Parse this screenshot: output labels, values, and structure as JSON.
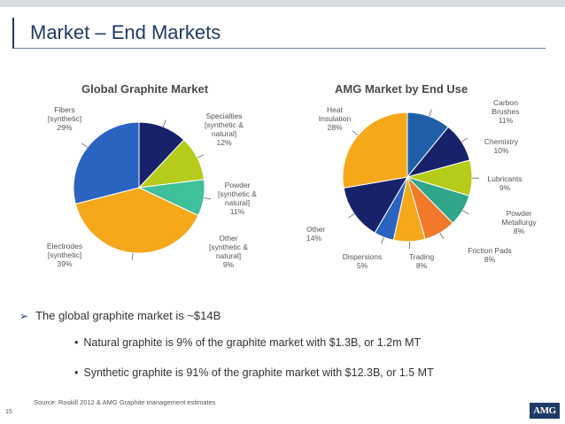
{
  "page": {
    "title": "Market – End Markets",
    "page_number": "15",
    "logo_text": "AMG"
  },
  "chart_data": [
    {
      "type": "pie",
      "title": "Global Graphite Market",
      "slices": [
        {
          "label": "Specialties [synthetic & natural]",
          "label_lines": [
            "Specialties",
            "[synthetic &",
            "natural]",
            "12%"
          ],
          "value": 12,
          "color": "#17226b"
        },
        {
          "label": "Powder [synthetic & natural]",
          "label_lines": [
            "Powder",
            "[synthetic &",
            "natural]",
            "11%"
          ],
          "value": 11,
          "color": "#b5cc1a"
        },
        {
          "label": "Other [synthetic & natural]",
          "label_lines": [
            "Other",
            "[synthetic &",
            "natural]",
            "9%"
          ],
          "value": 9,
          "color": "#3fbf9a"
        },
        {
          "label": "Electrodes [synthetic]",
          "label_lines": [
            "Electrodes",
            "[synthetic]",
            "39%"
          ],
          "value": 39,
          "color": "#f5a81a"
        },
        {
          "label": "Fibers [synthetic]",
          "label_lines": [
            "Fibers",
            "[synthetic]",
            "29%"
          ],
          "value": 29,
          "color": "#2a63c0"
        }
      ]
    },
    {
      "type": "pie",
      "title": "AMG Market by End Use",
      "slices": [
        {
          "label": "Carbon Brushes",
          "label_lines": [
            "Carbon",
            "Brushes",
            "11%"
          ],
          "value": 11,
          "color": "#1f5fa8"
        },
        {
          "label": "Chemistry",
          "label_lines": [
            "Chemistry",
            "10%"
          ],
          "value": 10,
          "color": "#17226b"
        },
        {
          "label": "Lubricants",
          "label_lines": [
            "Lubricants",
            "9%"
          ],
          "value": 9,
          "color": "#b5cc1a"
        },
        {
          "label": "Powder Metallurgy",
          "label_lines": [
            "Powder",
            "Metallurgy",
            "8%"
          ],
          "value": 8,
          "color": "#2fa58a"
        },
        {
          "label": "Friction Pads",
          "label_lines": [
            "Friction Pads",
            "8%"
          ],
          "value": 8,
          "color": "#f07a2a"
        },
        {
          "label": "Trading",
          "label_lines": [
            "Trading",
            "8%"
          ],
          "value": 8,
          "color": "#f5a81a"
        },
        {
          "label": "Dispersions",
          "label_lines": [
            "Dispersions",
            "5%"
          ],
          "value": 5,
          "color": "#2a63c0"
        },
        {
          "label": "Other",
          "label_lines": [
            "Other",
            "14%"
          ],
          "value": 14,
          "color": "#17226b"
        },
        {
          "label": "Heat Insulation",
          "label_lines": [
            "Heat",
            "Insulation",
            "28%"
          ],
          "value": 28,
          "color": "#f5a81a"
        }
      ]
    }
  ],
  "bullets": {
    "main": "The global graphite market is ~$14B",
    "sub": [
      "Natural graphite is 9% of the graphite market with $1.3B, or 1.2m MT",
      "Synthetic graphite is 91% of the graphite market with $12.3B, or 1.5 MT"
    ]
  },
  "source": "Source: Roskill 2012 & AMG Graphite management estimates"
}
